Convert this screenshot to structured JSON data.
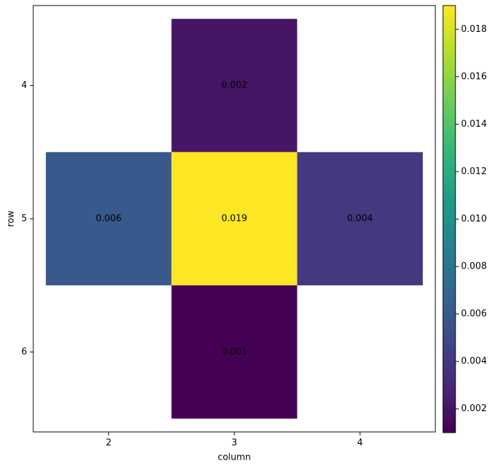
{
  "chart_data": {
    "type": "heatmap",
    "x_label": "column",
    "y_label": "row",
    "x": [
      2,
      3,
      4
    ],
    "y": [
      4,
      5,
      6
    ],
    "values": [
      [
        null,
        0.002,
        null
      ],
      [
        0.006,
        0.019,
        0.004
      ],
      [
        null,
        0.001,
        null
      ]
    ],
    "xlim": [
      1.4,
      4.6
    ],
    "ylim": [
      6.6,
      3.4
    ],
    "xticks": [
      2,
      3,
      4
    ],
    "yticks": [
      4,
      5,
      6
    ],
    "colormap": "viridis",
    "clim": [
      0.001,
      0.019
    ],
    "cticks": [
      0.002,
      0.004,
      0.006,
      0.008,
      {
        "value": 0.01,
        "label": "0.010"
      },
      0.012,
      0.014,
      0.016,
      0.018
    ]
  }
}
